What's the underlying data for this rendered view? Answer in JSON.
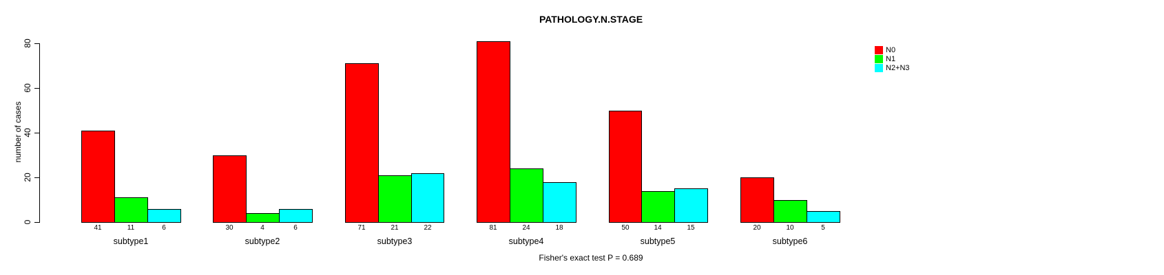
{
  "chart_data": {
    "type": "bar",
    "title": "PATHOLOGY.N.STAGE",
    "ylabel": "number of cases",
    "xlabel": "",
    "footnote": "Fisher's exact test P = 0.689",
    "categories": [
      "subtype1",
      "subtype2",
      "subtype3",
      "subtype4",
      "subtype5",
      "subtype6"
    ],
    "series": [
      {
        "name": "N0",
        "color": "#FF0000",
        "values": [
          41,
          30,
          71,
          81,
          50,
          20
        ]
      },
      {
        "name": "N1",
        "color": "#00FF00",
        "values": [
          11,
          4,
          21,
          24,
          14,
          10
        ]
      },
      {
        "name": "N2+N3",
        "color": "#00FFFF",
        "values": [
          6,
          6,
          22,
          18,
          15,
          5
        ]
      }
    ],
    "yticks": [
      0,
      20,
      40,
      60,
      80
    ],
    "ylim": [
      0,
      80
    ],
    "bar_value_labels_shown": true,
    "grid": false,
    "legend_position": "top-right",
    "bar_border_color": "#000000",
    "axis_color": "#000000"
  }
}
